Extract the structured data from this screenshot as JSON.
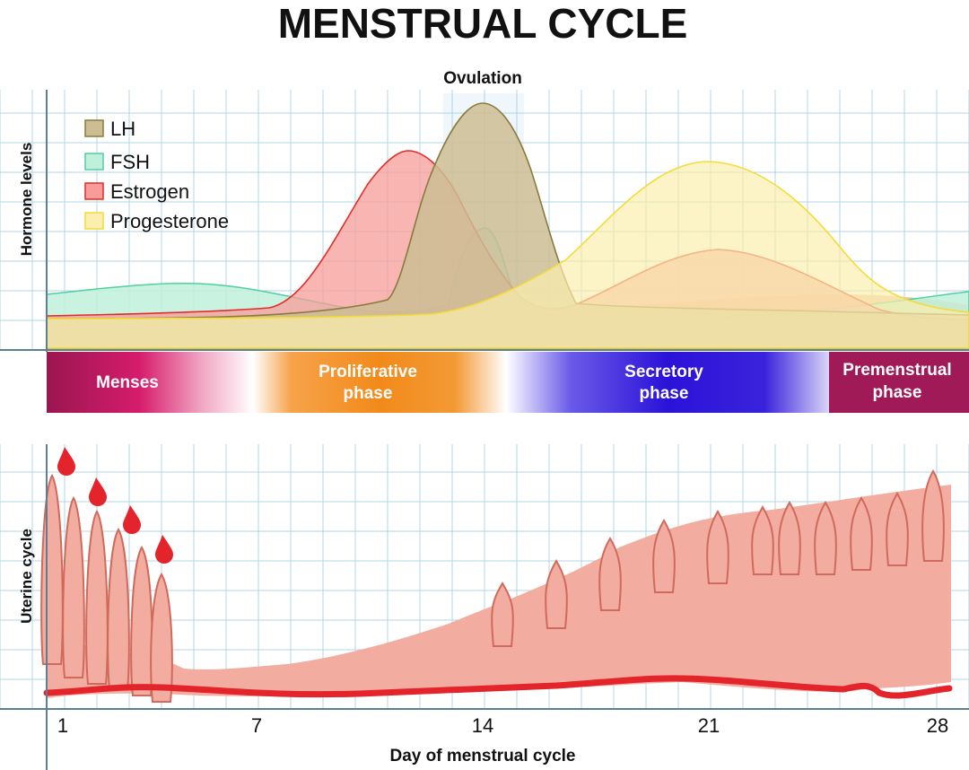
{
  "title": "MENSTRUAL CYCLE",
  "ovulation_label": "Ovulation",
  "hormone_axis_label": "Hormone levels",
  "uterine_axis_label": "Uterine cycle",
  "x_axis_label": "Day of menstrual cycle",
  "colors": {
    "grid": "#b3d4e6",
    "axis": "#5b7f93",
    "lh_fill": "#cdbd93",
    "lh_stroke": "#8a7a3e",
    "fsh_fill": "#bff0dc",
    "fsh_stroke": "#4fd0a0",
    "estrogen_fill": "#f79c98",
    "estrogen_stroke": "#e32b28",
    "progesterone_fill": "#fbeeae",
    "progesterone_stroke": "#f4dc38",
    "base_fill": "#efcaa4",
    "menses": "#c8175d",
    "proliferative": "#f28a1a",
    "secretory": "#2b12d8",
    "premenstrual": "#a11a58",
    "tissue": "#f2aca0",
    "tissue_dark": "#cf6a5c",
    "blood": "#e3242b"
  },
  "legend": [
    {
      "name": "LH",
      "fill": "#cdbd93",
      "stroke": "#8a7a3e"
    },
    {
      "name": "FSH",
      "fill": "#bff0dc",
      "stroke": "#4fd0a0"
    },
    {
      "name": "Estrogen",
      "fill": "#f79c98",
      "stroke": "#e32b28"
    },
    {
      "name": "Progesterone",
      "fill": "#fbeeae",
      "stroke": "#f4dc38"
    }
  ],
  "phases": [
    {
      "line1": "Menses",
      "line2": ""
    },
    {
      "line1": "Proliferative",
      "line2": "phase"
    },
    {
      "line1": "Secretory",
      "line2": "phase"
    },
    {
      "line1": "Premenstrual",
      "line2": "phase"
    }
  ],
  "x_ticks": [
    "1",
    "7",
    "14",
    "21",
    "28"
  ]
}
